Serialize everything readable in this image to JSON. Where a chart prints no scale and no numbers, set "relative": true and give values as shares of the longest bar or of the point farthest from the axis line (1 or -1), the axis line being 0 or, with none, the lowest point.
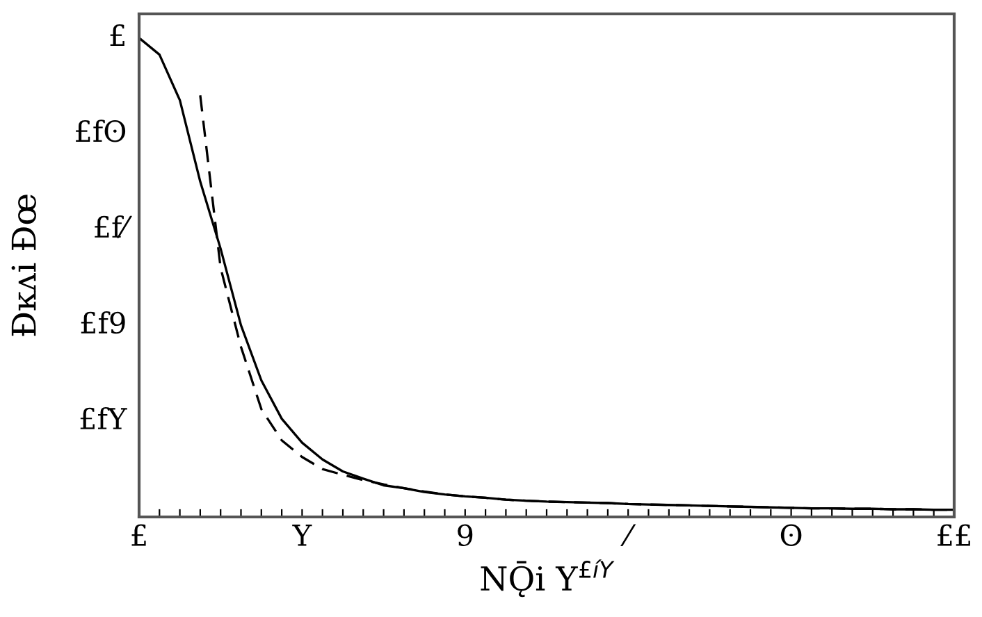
{
  "chart_data": {
    "type": "line",
    "relative": true,
    "xlabel": "NǬi Y$^{£íY}$",
    "ylabel": "Ðĸʌi Ðœ",
    "categories": [
      "£",
      null,
      null,
      null,
      null,
      null,
      null,
      null,
      "Y",
      null,
      null,
      null,
      null,
      null,
      null,
      null,
      "9",
      null,
      null,
      null,
      null,
      null,
      null,
      null,
      "⁄",
      null,
      null,
      null,
      null,
      null,
      null,
      null,
      "ʘ",
      null,
      null,
      null,
      null,
      null,
      null,
      null,
      "££"
    ],
    "annotations": [
      "£",
      "£fʘ",
      "£f⁄",
      "£f9",
      "£fY"
    ],
    "grid": false,
    "legend": false,
    "series": [
      {
        "color": "#000000",
        "line_style": "solid",
        "values": [
          1.0,
          0.965,
          0.87,
          0.7,
          0.56,
          0.4,
          0.285,
          0.205,
          0.155,
          0.12,
          0.095,
          0.08,
          0.066,
          0.06,
          0.052,
          0.047,
          0.043,
          0.04,
          0.036,
          0.034,
          0.032,
          0.031,
          0.03,
          0.029,
          0.027,
          0.026,
          0.025,
          0.024,
          0.023,
          0.022,
          0.021,
          0.02,
          0.019,
          0.018,
          0.018,
          0.017,
          0.017,
          0.016,
          0.016,
          0.015,
          0.015
        ]
      },
      {
        "color": "#000000",
        "line_style": "dashed",
        "values": [
          null,
          null,
          null,
          0.88,
          0.52,
          0.355,
          0.225,
          0.16,
          0.125,
          0.1,
          0.088,
          0.077,
          0.068,
          0.06,
          0.053,
          0.047,
          0.043,
          0.04,
          0.036,
          0.034,
          0.032,
          0.031,
          0.03,
          0.029,
          0.027,
          0.026,
          0.025,
          0.024,
          0.023,
          0.022,
          0.021,
          0.02,
          0.019,
          0.018,
          0.018,
          0.017,
          0.017,
          0.016,
          0.016,
          0.015,
          0.015
        ]
      }
    ]
  }
}
